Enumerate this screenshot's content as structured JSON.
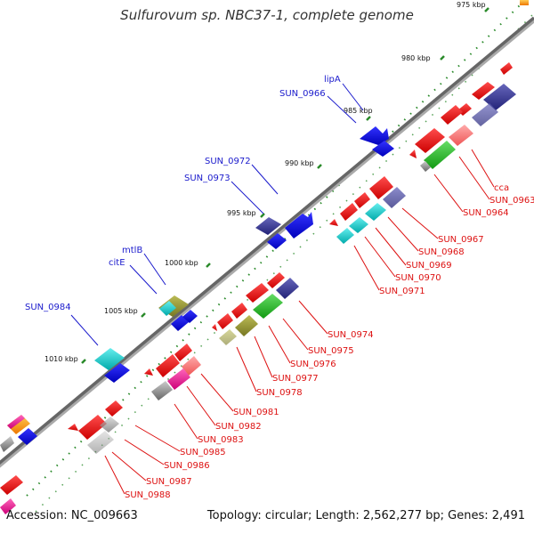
{
  "title": "Sulfurovum sp. NBC37-1, complete genome",
  "footer": {
    "accession": "Accession: NC_009663",
    "summary": "Topology: circular; Length: 2,562,277 bp; Genes: 2,491"
  },
  "ruler_labels": [
    "975 kbp",
    "980 kbp",
    "985 kbp",
    "990 kbp",
    "995 kbp",
    "1000 kbp",
    "1005 kbp",
    "1010 kbp"
  ],
  "outer_gene_labels": [
    "lipA",
    "SUN_0966",
    "SUN_0972",
    "SUN_0973",
    "mtlB",
    "citE",
    "SUN_0984"
  ],
  "inner_gene_labels": [
    "cca",
    "SUN_0963",
    "SUN_0964",
    "SUN_0967",
    "SUN_0968",
    "SUN_0969",
    "SUN_0970",
    "SUN_0971",
    "SUN_0974",
    "SUN_0975",
    "SUN_0976",
    "SUN_0977",
    "SUN_0978",
    "SUN_0981",
    "SUN_0982",
    "SUN_0983",
    "SUN_0985",
    "SUN_0986",
    "SUN_0987",
    "SUN_0988"
  ],
  "colors": {
    "backbone": "#777777",
    "tick_major": "#2a8a2a",
    "outer_label": "#1a1acc",
    "inner_label": "#dd1111",
    "gene_red": "#ee0000",
    "gene_blue": "#0000dd",
    "gene_navy": "#333399",
    "gene_cyan": "#00cccc",
    "gene_olive": "#999933",
    "gene_green": "#22bb22",
    "gene_pink": "#ff6666",
    "gene_gray": "#888888",
    "gene_magenta": "#ee2299",
    "gene_orange": "#ff9900"
  }
}
